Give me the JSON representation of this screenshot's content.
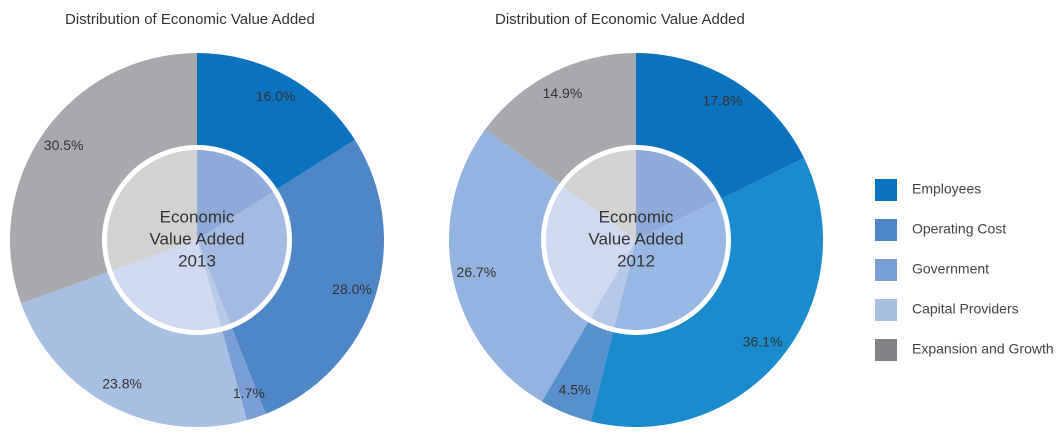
{
  "chart_data": [
    {
      "type": "pie",
      "title": "Distribution of Economic Value Added",
      "categories": [
        "Employees",
        "Operating Cost",
        "Government",
        "Capital Providers",
        "Expansion and Growth"
      ],
      "values": [
        16.0,
        28.0,
        1.7,
        23.8,
        30.5
      ],
      "value_labels": [
        "16.0%",
        "28.0%",
        "1.7%",
        "23.8%",
        "30.5%"
      ],
      "colors": [
        "#0a72be",
        "#4f86c6",
        "#7a9fd4",
        "#a8bfe4",
        "#a7a9ac"
      ],
      "inner_colors": [
        "#8eaadb",
        "#a3bbe2",
        "#b8caea",
        "#cfd9f1",
        "#d2d2d2"
      ],
      "center_text": [
        "Economic",
        "Value Added",
        "2013"
      ]
    },
    {
      "type": "pie",
      "title": "Distribution of Economic Value Added",
      "categories": [
        "Employees",
        "Operating Cost",
        "Government",
        "Capital Providers",
        "Expansion and Growth"
      ],
      "values": [
        17.8,
        36.1,
        4.5,
        26.7,
        14.9
      ],
      "value_labels": [
        "17.8%",
        "36.1%",
        "4.5%",
        "26.7%",
        "14.9%"
      ],
      "colors": [
        "#0a72be",
        "#1a8bcc",
        "#5790cb",
        "#93b4e0",
        "#a7a9ac"
      ],
      "inner_colors": [
        "#8eaadb",
        "#97b8e4",
        "#b5c9ea",
        "#cfd9f1",
        "#d2d2d2"
      ],
      "center_text": [
        "Economic",
        "Value Added",
        "2012"
      ]
    }
  ],
  "legend": {
    "colors": [
      "#0a72be",
      "#4f86c6",
      "#7a9fd4",
      "#a8bfe4",
      "#808285"
    ]
  }
}
